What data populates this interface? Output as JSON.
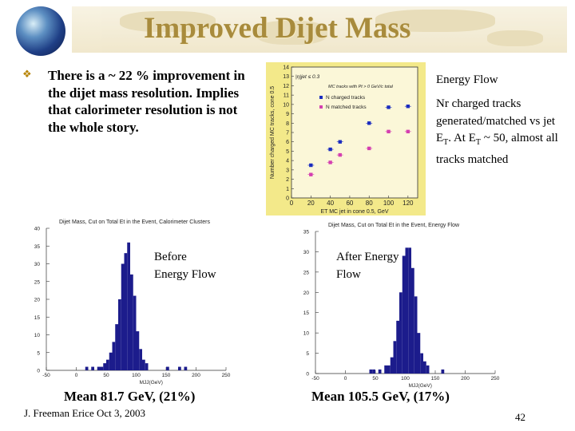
{
  "slide": {
    "title": "Improved Dijet Mass",
    "bullet": "There is a ~ 22 % improvement in the dijet mass resolution. Implies that calorimeter resolution is not the whole story.",
    "energy_flow_label": "Energy Flow",
    "nr_tracks_text": "Nr charged tracks generated/matched vs jet E",
    "nr_tracks_text_b": ". At E",
    "nr_tracks_text_c": " ~ 50, almost all tracks matched",
    "subscript_t": "T",
    "before_label": "Before Energy Flow",
    "after_label": "After Energy Flow",
    "mean_before": "Mean 81.7 GeV, (21%)",
    "mean_after": "Mean 105.5 GeV, (17%)",
    "footer": "J. Freeman  Erice  Oct 3, 2003",
    "page_number": "42",
    "colors": {
      "title": "#a88b3c",
      "bars": "#1c1c8c",
      "plot_bg": "#f3e98a"
    }
  },
  "chart_data": [
    {
      "type": "scatter",
      "ylabel": "Number charged MC tracks, cone 0.5",
      "xlabel": "ET MC jet in cone 0.5, GeV",
      "note1": "|η|jet ≤ 0.3",
      "note2": "MC tracks with Pt > 0 GeV/c total",
      "legend": [
        "N charged tracks",
        "N matched tracks"
      ],
      "xlim": [
        0,
        130
      ],
      "ylim": [
        0,
        14
      ],
      "xticks": [
        "0",
        "20",
        "40",
        "60",
        "80",
        "100",
        "120"
      ],
      "yticks": [
        "0",
        "1",
        "2",
        "3",
        "4",
        "5",
        "6",
        "7",
        "8",
        "9",
        "10",
        "11",
        "12",
        "13",
        "14"
      ],
      "series": [
        {
          "name": "N charged tracks",
          "color": "#1b2cbf",
          "x": [
            20,
            40,
            50,
            80,
            100,
            120
          ],
          "y": [
            3.5,
            5.2,
            6.0,
            8.0,
            9.7,
            9.8
          ]
        },
        {
          "name": "N matched tracks",
          "color": "#d43fb0",
          "x": [
            20,
            40,
            50,
            80,
            100,
            120
          ],
          "y": [
            2.5,
            3.8,
            4.6,
            5.3,
            7.1,
            7.1
          ]
        }
      ]
    },
    {
      "type": "bar",
      "title": "Dijet Mass, Cut on Total Et in the Event, Calorimeter Clusters",
      "xlabel": "MJJ(GeV)",
      "xlim": [
        -50,
        250
      ],
      "ylim": [
        0,
        40
      ],
      "xticks": [
        "-50",
        "0",
        "50",
        "100",
        "150",
        "200",
        "250"
      ],
      "yticks": [
        "0",
        "5",
        "10",
        "15",
        "20",
        "25",
        "30",
        "35",
        "40"
      ],
      "bin_width": 5,
      "bins": [
        {
          "x": 15,
          "v": 1
        },
        {
          "x": 25,
          "v": 1
        },
        {
          "x": 35,
          "v": 1
        },
        {
          "x": 40,
          "v": 1
        },
        {
          "x": 45,
          "v": 2
        },
        {
          "x": 50,
          "v": 3
        },
        {
          "x": 55,
          "v": 5
        },
        {
          "x": 60,
          "v": 8
        },
        {
          "x": 65,
          "v": 13
        },
        {
          "x": 70,
          "v": 20
        },
        {
          "x": 75,
          "v": 30
        },
        {
          "x": 80,
          "v": 33
        },
        {
          "x": 85,
          "v": 36
        },
        {
          "x": 90,
          "v": 27
        },
        {
          "x": 95,
          "v": 21
        },
        {
          "x": 100,
          "v": 11
        },
        {
          "x": 105,
          "v": 6
        },
        {
          "x": 110,
          "v": 3
        },
        {
          "x": 115,
          "v": 2
        },
        {
          "x": 150,
          "v": 1
        },
        {
          "x": 170,
          "v": 1
        },
        {
          "x": 180,
          "v": 1
        }
      ]
    },
    {
      "type": "bar",
      "title": "Dijet Mass, Cut on Total Et in the Event, Energy Flow",
      "xlabel": "MJJ(GeV)",
      "xlim": [
        -50,
        250
      ],
      "ylim": [
        0,
        35
      ],
      "xticks": [
        "-50",
        "0",
        "50",
        "100",
        "150",
        "200",
        "250"
      ],
      "yticks": [
        "0",
        "5",
        "10",
        "15",
        "20",
        "25",
        "30",
        "35"
      ],
      "bin_width": 5,
      "bins": [
        {
          "x": 40,
          "v": 1
        },
        {
          "x": 45,
          "v": 1
        },
        {
          "x": 55,
          "v": 1
        },
        {
          "x": 65,
          "v": 2
        },
        {
          "x": 70,
          "v": 2
        },
        {
          "x": 75,
          "v": 4
        },
        {
          "x": 80,
          "v": 8
        },
        {
          "x": 85,
          "v": 13
        },
        {
          "x": 90,
          "v": 20
        },
        {
          "x": 95,
          "v": 29
        },
        {
          "x": 100,
          "v": 31
        },
        {
          "x": 105,
          "v": 31
        },
        {
          "x": 110,
          "v": 26
        },
        {
          "x": 115,
          "v": 19
        },
        {
          "x": 120,
          "v": 10
        },
        {
          "x": 125,
          "v": 5
        },
        {
          "x": 130,
          "v": 3
        },
        {
          "x": 135,
          "v": 2
        },
        {
          "x": 160,
          "v": 1
        }
      ]
    }
  ]
}
